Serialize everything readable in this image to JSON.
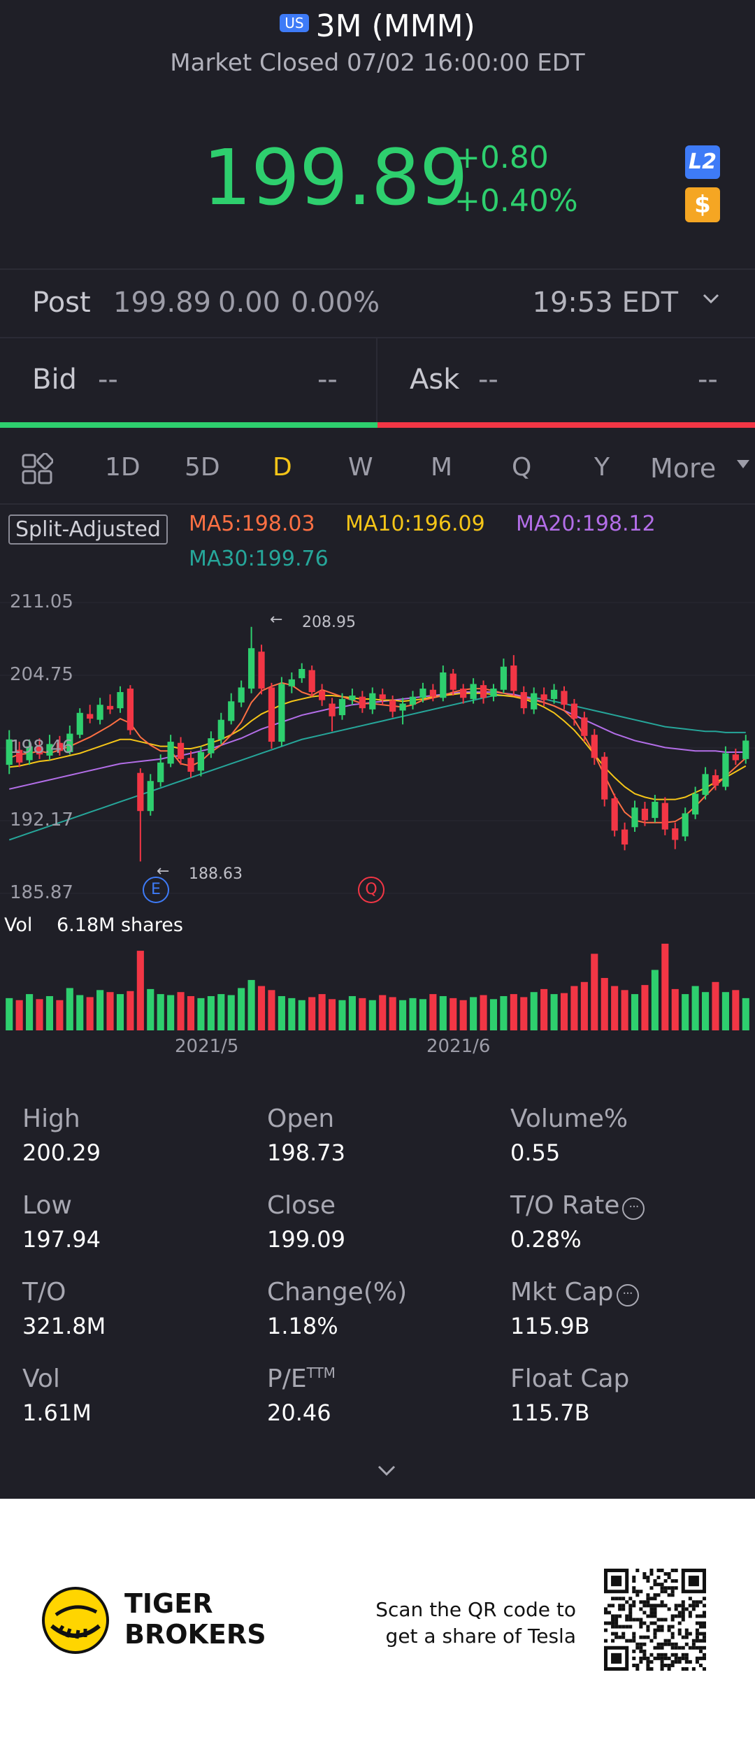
{
  "header": {
    "market_badge": "US",
    "title": "3M (MMM)",
    "status": "Market Closed 07/02 16:00:00 EDT",
    "price": "199.89",
    "change": "+0.80",
    "change_pct": "+0.40%",
    "l2_badge": "L2",
    "dollar_badge": "$",
    "price_color": "#2ecf6e"
  },
  "post": {
    "label": "Post",
    "price": "199.89",
    "change": "0.00",
    "change_pct": "0.00%",
    "time": "19:53 EDT"
  },
  "bid": {
    "label": "Bid",
    "price": "--",
    "size": "--"
  },
  "ask": {
    "label": "Ask",
    "price": "--",
    "size": "--"
  },
  "periods": [
    {
      "label": "1D",
      "active": false
    },
    {
      "label": "5D",
      "active": false
    },
    {
      "label": "D",
      "active": true
    },
    {
      "label": "W",
      "active": false
    },
    {
      "label": "M",
      "active": false
    },
    {
      "label": "Q",
      "active": false
    },
    {
      "label": "Y",
      "active": false
    }
  ],
  "more_label": "More",
  "ma": {
    "split_adjusted": "Split-Adjusted",
    "ma5": "MA5:198.03",
    "ma10": "MA10:196.09",
    "ma20": "MA20:198.12",
    "ma30": "MA30:199.76",
    "colors": {
      "ma5": "#ff7043",
      "ma10": "#f5c518",
      "ma20": "#b36ee8",
      "ma30": "#26a69a"
    }
  },
  "chart_data": {
    "type": "candlestick",
    "y_ticks": [
      "211.05",
      "204.75",
      "198.46",
      "192.17",
      "185.87"
    ],
    "ylim": [
      185.87,
      211.05
    ],
    "x_ticks": [
      "2021/5",
      "2021/6"
    ],
    "high_marker": "208.95",
    "low_marker": "188.63",
    "event_markers": [
      "E",
      "Q"
    ],
    "volume_label": "Vol",
    "volume_value": "6.18M shares",
    "up_color": "#2ecf6e",
    "down_color": "#f23645",
    "candles": [
      {
        "o": 197.0,
        "c": 199.2,
        "h": 200.0,
        "l": 196.2
      },
      {
        "o": 198.3,
        "c": 197.2,
        "h": 199.0,
        "l": 196.8
      },
      {
        "o": 197.4,
        "c": 198.6,
        "h": 199.2,
        "l": 197.0
      },
      {
        "o": 198.6,
        "c": 197.9,
        "h": 199.3,
        "l": 197.5
      },
      {
        "o": 197.8,
        "c": 198.8,
        "h": 199.6,
        "l": 197.4
      },
      {
        "o": 198.9,
        "c": 198.2,
        "h": 199.5,
        "l": 197.8
      },
      {
        "o": 198.1,
        "c": 199.7,
        "h": 200.4,
        "l": 197.9
      },
      {
        "o": 199.6,
        "c": 201.5,
        "h": 201.9,
        "l": 199.3
      },
      {
        "o": 201.4,
        "c": 201.0,
        "h": 202.2,
        "l": 200.6
      },
      {
        "o": 200.9,
        "c": 202.2,
        "h": 202.8,
        "l": 200.5
      },
      {
        "o": 202.1,
        "c": 201.8,
        "h": 203.1,
        "l": 201.4
      },
      {
        "o": 201.9,
        "c": 203.3,
        "h": 203.8,
        "l": 201.5
      },
      {
        "o": 203.6,
        "c": 200.0,
        "h": 203.9,
        "l": 199.6
      },
      {
        "o": 196.3,
        "c": 193.0,
        "h": 196.7,
        "l": 188.63
      },
      {
        "o": 193.0,
        "c": 195.6,
        "h": 196.2,
        "l": 192.6
      },
      {
        "o": 195.5,
        "c": 197.2,
        "h": 197.9,
        "l": 195.1
      },
      {
        "o": 197.1,
        "c": 199.0,
        "h": 199.6,
        "l": 196.8
      },
      {
        "o": 198.9,
        "c": 197.5,
        "h": 199.4,
        "l": 197.0
      },
      {
        "o": 197.6,
        "c": 196.4,
        "h": 198.2,
        "l": 195.9
      },
      {
        "o": 196.5,
        "c": 198.1,
        "h": 198.6,
        "l": 196.0
      },
      {
        "o": 198.0,
        "c": 199.3,
        "h": 199.9,
        "l": 197.6
      },
      {
        "o": 199.2,
        "c": 200.9,
        "h": 201.5,
        "l": 198.8
      },
      {
        "o": 200.8,
        "c": 202.5,
        "h": 203.2,
        "l": 200.5
      },
      {
        "o": 202.4,
        "c": 203.7,
        "h": 204.3,
        "l": 202.0
      },
      {
        "o": 203.6,
        "c": 207.1,
        "h": 208.95,
        "l": 203.2
      },
      {
        "o": 206.8,
        "c": 203.6,
        "h": 207.4,
        "l": 203.1
      },
      {
        "o": 203.7,
        "c": 199.0,
        "h": 204.1,
        "l": 198.4
      },
      {
        "o": 199.0,
        "c": 204.0,
        "h": 204.6,
        "l": 198.6
      },
      {
        "o": 203.8,
        "c": 204.4,
        "h": 205.0,
        "l": 203.2
      },
      {
        "o": 204.5,
        "c": 205.3,
        "h": 205.8,
        "l": 204.1
      },
      {
        "o": 205.2,
        "c": 203.3,
        "h": 205.6,
        "l": 202.9
      },
      {
        "o": 203.4,
        "c": 202.6,
        "h": 204.0,
        "l": 202.1
      },
      {
        "o": 202.3,
        "c": 201.2,
        "h": 202.8,
        "l": 199.9
      },
      {
        "o": 201.3,
        "c": 202.7,
        "h": 203.2,
        "l": 200.9
      },
      {
        "o": 202.6,
        "c": 203.0,
        "h": 203.6,
        "l": 202.2
      },
      {
        "o": 202.9,
        "c": 201.9,
        "h": 203.4,
        "l": 201.5
      },
      {
        "o": 201.8,
        "c": 203.2,
        "h": 203.7,
        "l": 201.4
      },
      {
        "o": 203.1,
        "c": 202.7,
        "h": 203.6,
        "l": 202.2
      },
      {
        "o": 202.6,
        "c": 201.6,
        "h": 203.0,
        "l": 201.1
      },
      {
        "o": 201.7,
        "c": 202.3,
        "h": 202.8,
        "l": 200.5
      },
      {
        "o": 202.2,
        "c": 202.9,
        "h": 203.4,
        "l": 201.8
      },
      {
        "o": 202.8,
        "c": 203.6,
        "h": 204.1,
        "l": 202.4
      },
      {
        "o": 203.5,
        "c": 202.9,
        "h": 204.0,
        "l": 202.5
      },
      {
        "o": 202.8,
        "c": 205.0,
        "h": 205.6,
        "l": 202.5
      },
      {
        "o": 204.9,
        "c": 203.5,
        "h": 205.3,
        "l": 203.0
      },
      {
        "o": 203.6,
        "c": 202.8,
        "h": 204.0,
        "l": 202.3
      },
      {
        "o": 202.7,
        "c": 204.0,
        "h": 204.5,
        "l": 202.3
      },
      {
        "o": 203.9,
        "c": 202.8,
        "h": 204.3,
        "l": 202.3
      },
      {
        "o": 202.9,
        "c": 203.6,
        "h": 204.0,
        "l": 202.5
      },
      {
        "o": 203.5,
        "c": 205.5,
        "h": 206.2,
        "l": 203.2
      },
      {
        "o": 205.6,
        "c": 203.4,
        "h": 206.5,
        "l": 203.0
      },
      {
        "o": 203.3,
        "c": 201.9,
        "h": 203.8,
        "l": 201.4
      },
      {
        "o": 201.8,
        "c": 203.2,
        "h": 203.7,
        "l": 201.4
      },
      {
        "o": 203.1,
        "c": 202.6,
        "h": 203.7,
        "l": 202.1
      },
      {
        "o": 202.7,
        "c": 203.5,
        "h": 204.0,
        "l": 202.3
      },
      {
        "o": 203.4,
        "c": 202.2,
        "h": 203.8,
        "l": 201.8
      },
      {
        "o": 202.3,
        "c": 201.0,
        "h": 202.7,
        "l": 200.4
      },
      {
        "o": 201.1,
        "c": 199.5,
        "h": 201.6,
        "l": 199.0
      },
      {
        "o": 199.6,
        "c": 197.6,
        "h": 200.1,
        "l": 197.0
      },
      {
        "o": 197.7,
        "c": 194.0,
        "h": 198.1,
        "l": 193.4
      },
      {
        "o": 194.1,
        "c": 191.3,
        "h": 194.5,
        "l": 190.8
      },
      {
        "o": 191.4,
        "c": 190.1,
        "h": 192.0,
        "l": 189.6
      },
      {
        "o": 191.6,
        "c": 193.3,
        "h": 193.9,
        "l": 191.2
      },
      {
        "o": 193.2,
        "c": 192.2,
        "h": 193.8,
        "l": 191.7
      },
      {
        "o": 192.4,
        "c": 193.8,
        "h": 194.4,
        "l": 192.0
      },
      {
        "o": 193.7,
        "c": 191.4,
        "h": 194.2,
        "l": 190.9
      },
      {
        "o": 191.5,
        "c": 190.5,
        "h": 192.0,
        "l": 189.7
      },
      {
        "o": 190.8,
        "c": 192.8,
        "h": 193.3,
        "l": 190.4
      },
      {
        "o": 192.7,
        "c": 194.5,
        "h": 195.1,
        "l": 192.3
      },
      {
        "o": 194.4,
        "c": 196.2,
        "h": 196.8,
        "l": 194.0
      },
      {
        "o": 196.1,
        "c": 195.2,
        "h": 196.6,
        "l": 194.8
      },
      {
        "o": 195.1,
        "c": 198.0,
        "h": 198.6,
        "l": 194.8
      },
      {
        "o": 197.9,
        "c": 197.4,
        "h": 198.4,
        "l": 197.0
      },
      {
        "o": 197.5,
        "c": 199.1,
        "h": 199.6,
        "l": 197.1
      }
    ],
    "ma5": [
      197.6,
      197.9,
      198.0,
      198.2,
      198.0,
      198.3,
      198.6,
      199.0,
      199.4,
      199.9,
      200.4,
      201.0,
      200.6,
      199.4,
      198.7,
      198.2,
      198.2,
      197.1,
      196.9,
      197.3,
      198.1,
      198.7,
      199.6,
      200.7,
      202.4,
      203.4,
      203.8,
      204.1,
      203.9,
      203.3,
      203.0,
      203.5,
      203.2,
      202.9,
      202.6,
      202.3,
      202.3,
      202.2,
      202.1,
      202.0,
      202.2,
      202.6,
      202.8,
      203.0,
      203.3,
      203.5,
      203.6,
      203.6,
      203.4,
      203.2,
      203.0,
      202.8,
      202.6,
      202.4,
      202.1,
      201.7,
      200.9,
      199.5,
      197.9,
      196.1,
      194.3,
      192.9,
      192.2,
      192.0,
      192.0,
      192.0,
      192.1,
      192.6,
      193.4,
      194.3,
      195.2,
      196.0,
      196.8,
      197.6
    ],
    "ma10": [
      196.8,
      196.9,
      197.1,
      197.3,
      197.4,
      197.6,
      197.8,
      198.0,
      198.3,
      198.6,
      198.9,
      199.2,
      199.2,
      199.0,
      198.8,
      198.6,
      198.6,
      198.4,
      198.4,
      198.6,
      198.9,
      199.2,
      199.6,
      200.1,
      200.8,
      201.4,
      201.8,
      202.2,
      202.5,
      202.7,
      202.9,
      203.0,
      203.0,
      202.9,
      202.8,
      202.7,
      202.7,
      202.6,
      202.6,
      202.5,
      202.6,
      202.7,
      202.9,
      203.0,
      203.1,
      203.2,
      203.2,
      203.2,
      203.1,
      203.0,
      202.9,
      202.7,
      202.4,
      202.0,
      201.5,
      200.8,
      200.0,
      199.0,
      197.9,
      196.8,
      195.9,
      195.1,
      194.5,
      194.2,
      194.0,
      194.0,
      194.0,
      194.2,
      194.6,
      195.0,
      195.5,
      195.9,
      196.4,
      196.9
    ],
    "ma20": [
      194.9,
      195.1,
      195.3,
      195.5,
      195.7,
      195.9,
      196.1,
      196.3,
      196.5,
      196.7,
      196.9,
      197.1,
      197.2,
      197.3,
      197.4,
      197.5,
      197.7,
      197.8,
      198.0,
      198.2,
      198.4,
      198.7,
      199.0,
      199.3,
      199.7,
      200.1,
      200.4,
      200.7,
      201.0,
      201.3,
      201.5,
      201.7,
      201.9,
      202.0,
      202.2,
      202.3,
      202.4,
      202.5,
      202.6,
      202.7,
      202.8,
      202.9,
      203.0,
      203.1,
      203.2,
      203.3,
      203.3,
      203.3,
      203.3,
      203.2,
      203.1,
      202.9,
      202.7,
      202.4,
      202.1,
      201.7,
      201.3,
      200.9,
      200.5,
      200.1,
      199.7,
      199.4,
      199.1,
      198.9,
      198.7,
      198.5,
      198.4,
      198.3,
      198.2,
      198.2,
      198.2,
      198.1,
      198.1,
      198.1
    ],
    "ma30": [
      190.5,
      190.8,
      191.1,
      191.4,
      191.7,
      192.0,
      192.3,
      192.6,
      192.9,
      193.2,
      193.5,
      193.8,
      194.1,
      194.4,
      194.7,
      195.0,
      195.3,
      195.6,
      195.9,
      196.2,
      196.5,
      196.8,
      197.1,
      197.4,
      197.7,
      198.0,
      198.3,
      198.6,
      198.9,
      199.2,
      199.4,
      199.6,
      199.8,
      200.0,
      200.2,
      200.4,
      200.6,
      200.8,
      201.0,
      201.2,
      201.4,
      201.6,
      201.8,
      202.0,
      202.2,
      202.4,
      202.6,
      202.8,
      203.0,
      203.0,
      203.0,
      202.9,
      202.8,
      202.7,
      202.5,
      202.3,
      202.1,
      201.9,
      201.7,
      201.5,
      201.3,
      201.1,
      200.9,
      200.7,
      200.5,
      200.3,
      200.2,
      200.1,
      200.0,
      199.9,
      199.9,
      199.8,
      199.8,
      199.8
    ],
    "volumes": [
      3.2,
      3.0,
      3.6,
      3.1,
      3.4,
      3.0,
      4.2,
      3.5,
      3.3,
      4.0,
      3.8,
      3.6,
      3.9,
      7.9,
      4.1,
      3.6,
      3.5,
      3.8,
      3.4,
      3.2,
      3.4,
      3.6,
      3.5,
      4.2,
      5.0,
      4.4,
      4.0,
      3.4,
      3.2,
      3.0,
      3.3,
      3.6,
      3.1,
      3.0,
      3.4,
      3.2,
      3.0,
      3.5,
      3.3,
      3.0,
      3.2,
      3.1,
      3.6,
      3.4,
      3.2,
      3.0,
      3.3,
      3.5,
      3.1,
      3.4,
      3.6,
      3.3,
      3.8,
      4.1,
      3.6,
      3.7,
      4.4,
      4.8,
      7.6,
      5.2,
      4.4,
      4.0,
      3.6,
      4.5,
      6.0,
      8.6,
      4.1,
      3.6,
      4.4,
      3.8,
      4.8,
      3.8,
      4.0,
      3.2
    ]
  },
  "stats": [
    {
      "label": "High",
      "value": "200.29"
    },
    {
      "label": "Open",
      "value": "198.73"
    },
    {
      "label": "Volume%",
      "value": "0.55"
    },
    {
      "label": "Low",
      "value": "197.94"
    },
    {
      "label": "Close",
      "value": "199.09"
    },
    {
      "label": "T/O Rate",
      "value": "0.28%"
    },
    {
      "label": "T/O",
      "value": "321.8M"
    },
    {
      "label": "Change(%)",
      "value": "1.18%"
    },
    {
      "label": "Mkt Cap",
      "value": "115.9B"
    },
    {
      "label": "Vol",
      "value": "1.61M"
    },
    {
      "label": "P/E",
      "value": "20.46"
    },
    {
      "label": "Float Cap",
      "value": "115.7B"
    }
  ],
  "pe_superscript": "TTM",
  "info_glyph": "···",
  "expand_glyph": "⌄",
  "footer": {
    "brand_line1": "TIGER",
    "brand_line2": "BROKERS",
    "scan_line1": "Scan the QR code to",
    "scan_line2": "get a share of Tesla"
  }
}
